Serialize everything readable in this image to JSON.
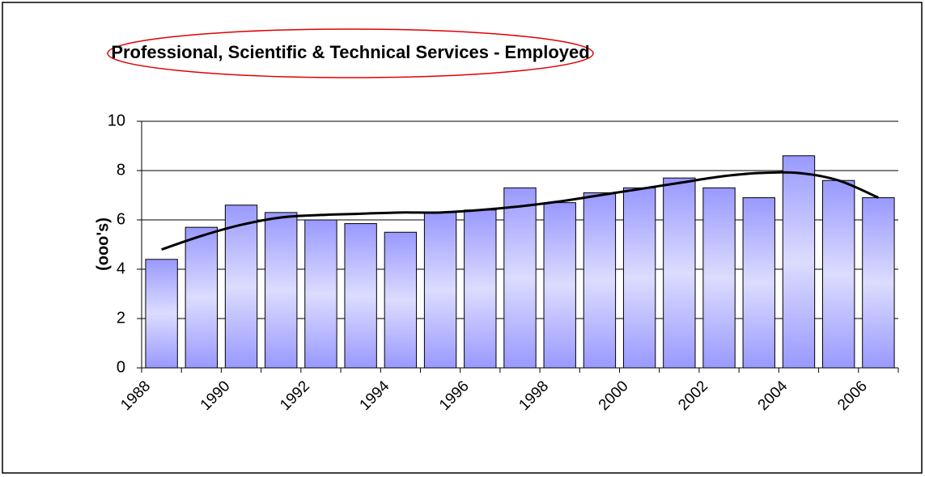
{
  "chart_data": {
    "type": "bar",
    "title": "Professional, Scientific & Technical Services - Employed",
    "y_label": "(ooo's)",
    "categories": [
      "1988",
      null,
      "1990",
      null,
      "1992",
      null,
      "1994",
      null,
      "1996",
      null,
      "1998",
      null,
      "2000",
      null,
      "2002",
      null,
      "2004",
      null,
      "2006"
    ],
    "values": [
      4.4,
      5.7,
      6.6,
      6.3,
      6.0,
      5.85,
      5.5,
      6.3,
      6.4,
      7.3,
      6.7,
      7.1,
      7.3,
      7.7,
      7.3,
      6.9,
      8.6,
      7.6,
      6.9
    ],
    "color": "#9999ff",
    "trend": {
      "values": [
        4.8,
        5.35,
        5.8,
        6.1,
        6.2,
        6.25,
        6.3,
        6.3,
        6.4,
        6.55,
        6.75,
        7.0,
        7.25,
        7.5,
        7.75,
        7.9,
        7.9,
        7.6,
        6.9
      ],
      "color": "#000000"
    },
    "ylim": [
      0,
      10
    ],
    "yticks": [
      0,
      2,
      4,
      6,
      8,
      10
    ],
    "grid": true
  }
}
